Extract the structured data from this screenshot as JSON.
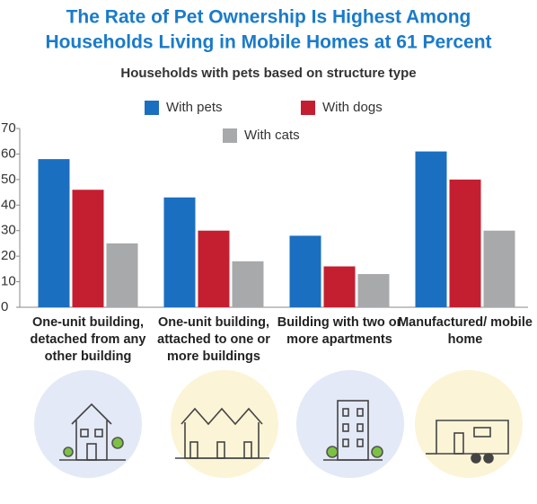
{
  "chart_data": {
    "type": "bar",
    "title": [
      "The Rate of Pet Ownership Is Highest Among",
      "Households Living in Mobile Homes at 61 Percent"
    ],
    "subtitle": "Households with pets based on structure type",
    "categories": [
      "One-unit building, detached from any other building",
      "One-unit building, attached to one or more buildings",
      "Building with two or more apartments",
      "Manufactured/ mobile home"
    ],
    "series": [
      {
        "name": "With pets",
        "color": "#1b6fc0",
        "values": [
          58,
          43,
          28,
          61
        ]
      },
      {
        "name": "With dogs",
        "color": "#c41f30",
        "values": [
          46,
          30,
          16,
          50
        ]
      },
      {
        "name": "With cats",
        "color": "#a8a9ab",
        "values": [
          25,
          18,
          13,
          30
        ]
      }
    ],
    "ylim": [
      0,
      70
    ],
    "yticks": [
      0,
      10,
      20,
      30,
      40,
      50,
      60,
      70
    ],
    "grid": false
  }
}
